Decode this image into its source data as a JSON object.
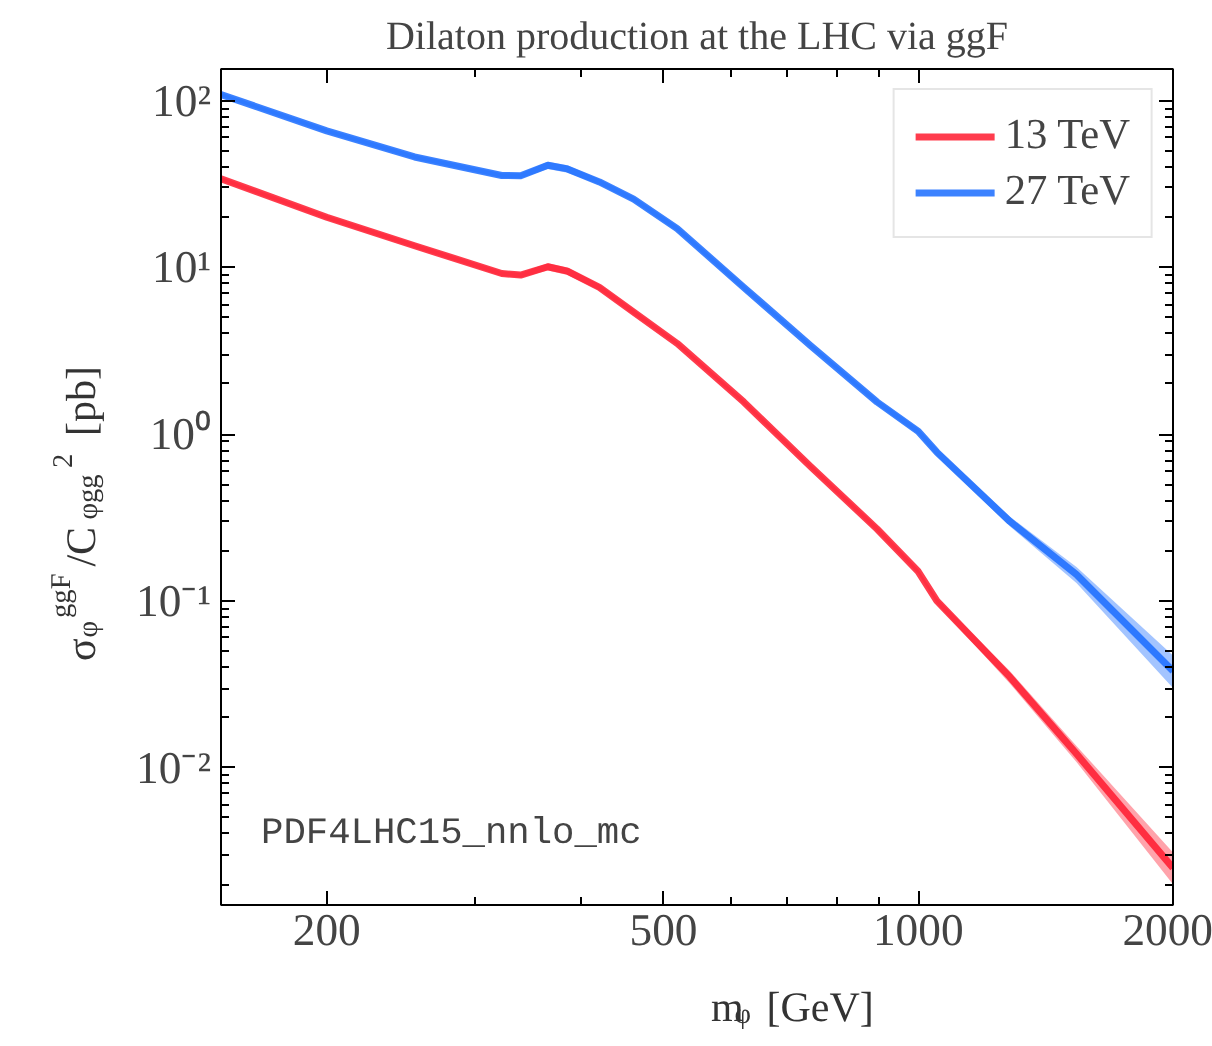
{
  "chart_data": {
    "type": "line",
    "title": "Dilaton production at the LHC via ggF",
    "xlabel": "m$_{φ}$ [GeV]",
    "ylabel": "σ$_{φ}$$^{ggF}$/C$_{φgg}$$^{2}$ [pb]",
    "log": "xy",
    "xlim": [
      150,
      2000
    ],
    "ylim": [
      0.0015,
      155
    ],
    "xticks": [
      200,
      500,
      1000,
      2000
    ],
    "yticks": [
      {
        "value": 0.01,
        "label": "10⁻²"
      },
      {
        "value": 0.1,
        "label": "10⁻¹"
      },
      {
        "value": 1,
        "label": "10⁰"
      },
      {
        "value": 10,
        "label": "10¹"
      },
      {
        "value": 100,
        "label": "10²"
      }
    ],
    "grid": false,
    "legend": "top right",
    "annotations": [
      "PDF4LHC15_nnlo_mc"
    ],
    "x": [
      150,
      200,
      254,
      322,
      339,
      365,
      385,
      420,
      461,
      519,
      622,
      746,
      894,
      1000,
      1052,
      1283,
      1538,
      2000
    ],
    "series": [
      {
        "name": "13 TeV",
        "color": "#ff1a2e",
        "values": [
          34,
          20,
          13.5,
          9.2,
          9.0,
          10.1,
          9.5,
          7.6,
          5.4,
          3.5,
          1.56,
          0.64,
          0.27,
          0.15,
          0.1,
          0.035,
          0.0121,
          0.0025
        ],
        "lower": [
          33,
          19.4,
          13.1,
          8.9,
          8.7,
          9.6,
          9.0,
          7.3,
          5.2,
          3.4,
          1.51,
          0.62,
          0.26,
          0.145,
          0.096,
          0.032,
          0.0108,
          0.002
        ],
        "upper": [
          35,
          20.6,
          13.9,
          9.5,
          9.3,
          10.6,
          10.0,
          7.9,
          5.6,
          3.6,
          1.61,
          0.66,
          0.28,
          0.155,
          0.104,
          0.038,
          0.0135,
          0.0031
        ]
      },
      {
        "name": "27 TeV",
        "color": "#1a6cff",
        "values": [
          109,
          66,
          46,
          35.6,
          35.5,
          41,
          39,
          32.6,
          25.7,
          17.1,
          7.6,
          3.4,
          1.56,
          1.04,
          0.78,
          0.3,
          0.144,
          0.038
        ],
        "lower": [
          106,
          64,
          44.6,
          34.5,
          34.3,
          39,
          37,
          31.4,
          24.8,
          16.5,
          7.3,
          3.3,
          1.5,
          1.0,
          0.74,
          0.28,
          0.128,
          0.03
        ],
        "upper": [
          112,
          68,
          47.4,
          36.7,
          36.7,
          43,
          41,
          33.8,
          26.6,
          17.7,
          7.9,
          3.5,
          1.62,
          1.08,
          0.82,
          0.32,
          0.16,
          0.047
        ]
      }
    ]
  }
}
